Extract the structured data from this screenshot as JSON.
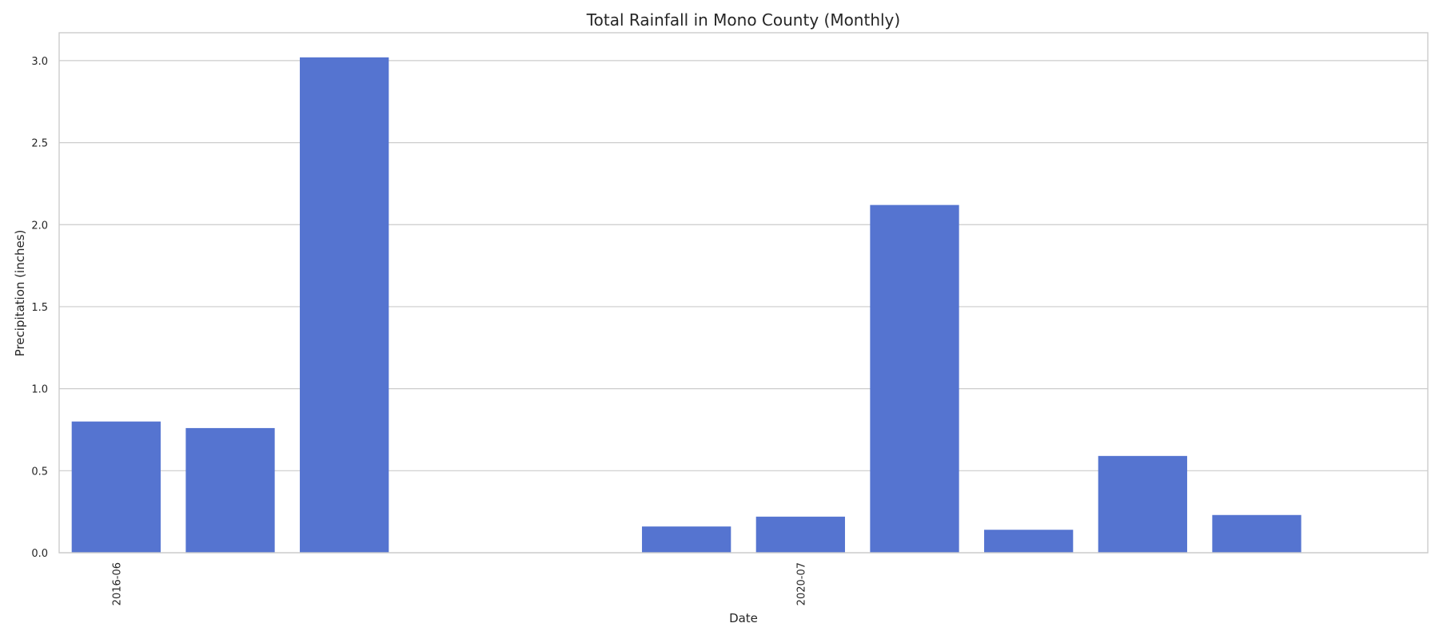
{
  "chart_data": {
    "type": "bar",
    "title": "Total Rainfall in Mono County (Monthly)",
    "xlabel": "Date",
    "ylabel": "Precipitation (inches)",
    "ylim": [
      0,
      3.17
    ],
    "yticks": [
      0.0,
      0.5,
      1.0,
      1.5,
      2.0,
      2.5,
      3.0
    ],
    "ytick_labels": [
      "0.0",
      "0.5",
      "1.0",
      "1.5",
      "2.0",
      "2.5",
      "3.0"
    ],
    "categories": [
      "2016-06",
      "",
      "",
      "",
      "",
      "",
      "2020-07",
      "",
      "",
      "",
      "",
      ""
    ],
    "xtick_labels": [
      {
        "index": 0,
        "label": "2016-06"
      },
      {
        "index": 6,
        "label": "2020-07"
      }
    ],
    "values": [
      0.8,
      0.76,
      3.02,
      0,
      0,
      0.16,
      0.22,
      2.12,
      0.14,
      0.59,
      0.23,
      0
    ],
    "bar_color": "#5574d0",
    "grid": true,
    "grid_axis": "y"
  }
}
